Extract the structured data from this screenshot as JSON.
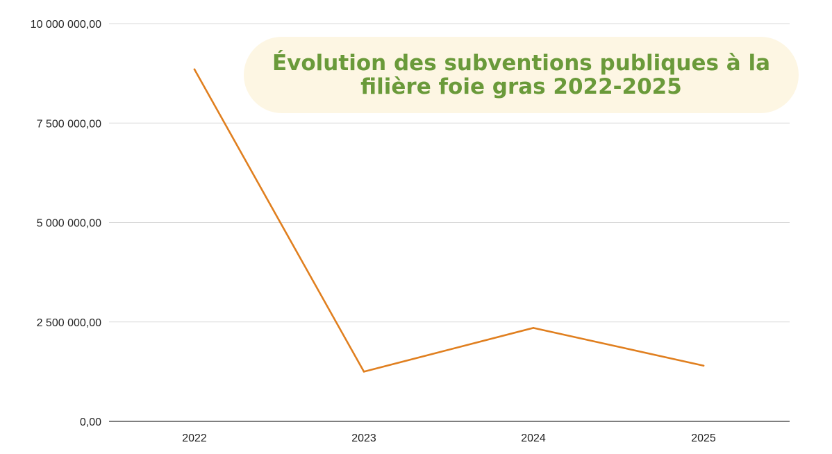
{
  "colors": {
    "line": "#e07f1f",
    "grid": "#d9d9d9",
    "axis": "#333333",
    "title_text": "#6a9a3a",
    "title_background": "#fdf6e3"
  },
  "title": {
    "line1": "Évolution des subventions publiques à la",
    "line2": "filière foie gras 2022-2025"
  },
  "chart_data": {
    "type": "line",
    "title": "Évolution des subventions publiques à la filière foie gras 2022-2025",
    "xlabel": "",
    "ylabel": "",
    "categories": [
      "2022",
      "2023",
      "2024",
      "2025"
    ],
    "series": [
      {
        "values": [
          8850000,
          1250000,
          2350000,
          1400000
        ]
      }
    ],
    "ylim": [
      0,
      10000000
    ],
    "yticks": [
      0,
      2500000,
      5000000,
      7500000,
      10000000
    ],
    "ytick_labels": [
      "0,00",
      "2 500 000,00",
      "5 000 000,00",
      "7 500 000,00",
      "10 000 000,00"
    ],
    "grid": true,
    "legend": "none"
  }
}
